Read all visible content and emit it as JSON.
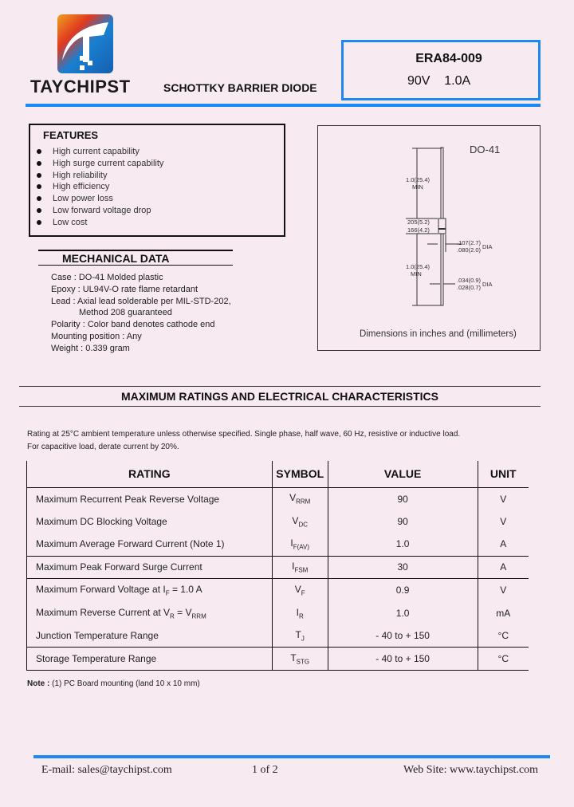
{
  "header": {
    "brand": "TAYCHIPST",
    "subtitle": "SCHOTTKY BARRIER DIODE",
    "part_number": "ERA84-009",
    "rating": "90V    1.0A",
    "accent": "#1e88f0"
  },
  "features": {
    "title": "FEATURES",
    "items": [
      "High current capability",
      "High surge current capability",
      "High reliability",
      "High efficiency",
      "Low power loss",
      "Low forward voltage drop",
      "Low cost"
    ]
  },
  "mechanical": {
    "title": "MECHANICAL  DATA",
    "lines": [
      "Case : DO-41  Molded plastic",
      "Epoxy : UL94V-O rate flame retardant",
      "Lead : Axial lead solderable per MIL-STD-202,",
      "Method 208 guaranteed",
      "Polarity : Color band denotes cathode end",
      "Mounting  position : Any",
      "Weight : 0.339  gram"
    ]
  },
  "diagram": {
    "package": "DO-41",
    "lead_top": [
      "1.0(25.4)",
      "MIN"
    ],
    "body_len": [
      "205(5.2)",
      "166(4.2)"
    ],
    "body_dia": [
      ".107(2.7)",
      ".080(2.0)",
      "DIA"
    ],
    "lead_bottom": [
      "1.0(25.4)",
      "MIN"
    ],
    "lead_dia": [
      ".034(0.9)",
      ".028(0.7)",
      "DIA"
    ],
    "caption": "Dimensions in inches and (millimeters)"
  },
  "section": {
    "title": "MAXIMUM RATINGS AND ELECTRICAL CHARACTERISTICS",
    "cond1": "Rating at  25°C ambient temperature unless otherwise specified. Single phase, half wave, 60 Hz, resistive or inductive load.",
    "cond2": "For capacitive load, derate current by 20%."
  },
  "table": {
    "headers": [
      "RATING",
      "SYMBOL",
      "VALUE",
      "UNIT"
    ],
    "rows": [
      {
        "rating": "Maximum Recurrent Peak Reverse Voltage",
        "sym": "V",
        "sub": "RRM",
        "value": "90",
        "unit": "V"
      },
      {
        "rating": "Maximum DC Blocking Voltage",
        "sym": "V",
        "sub": "DC",
        "value": "90",
        "unit": "V"
      },
      {
        "rating": "Maximum Average Forward Current  (Note 1)",
        "sym": "I",
        "sub": "F(AV)",
        "value": "1.0",
        "unit": "A"
      },
      {
        "rating": "Maximum Peak Forward Surge Current",
        "sym": "I",
        "sub": "FSM",
        "value": "30",
        "unit": "A"
      },
      {
        "rating": "Maximum Forward Voltage at I",
        "rsub": "F",
        "rtail": " = 1.0 A",
        "sym": "V",
        "sub": "F",
        "value": "0.9",
        "unit": "V"
      },
      {
        "rating": "Maximum Reverse Current at  V",
        "rsub": "R",
        "rtail": " = V",
        "rsub2": "RRM",
        "sym": "I",
        "sub": "R",
        "value": "1.0",
        "unit": "mA"
      },
      {
        "rating": "Junction Temperature Range",
        "sym": "T",
        "sub": "J",
        "value": "- 40 to + 150",
        "unit": "°C"
      },
      {
        "rating": "Storage Temperature Range",
        "sym": "T",
        "sub": "STG",
        "value": "- 40 to + 150",
        "unit": "°C"
      }
    ]
  },
  "note": {
    "label": "Note :",
    "text": " (1) PC Board mounting (land 10 x 10 mm)"
  },
  "footer": {
    "email": "E-mail: sales@taychipst.com",
    "page": "1  of  2",
    "web": "Web Site: www.taychipst.com"
  }
}
